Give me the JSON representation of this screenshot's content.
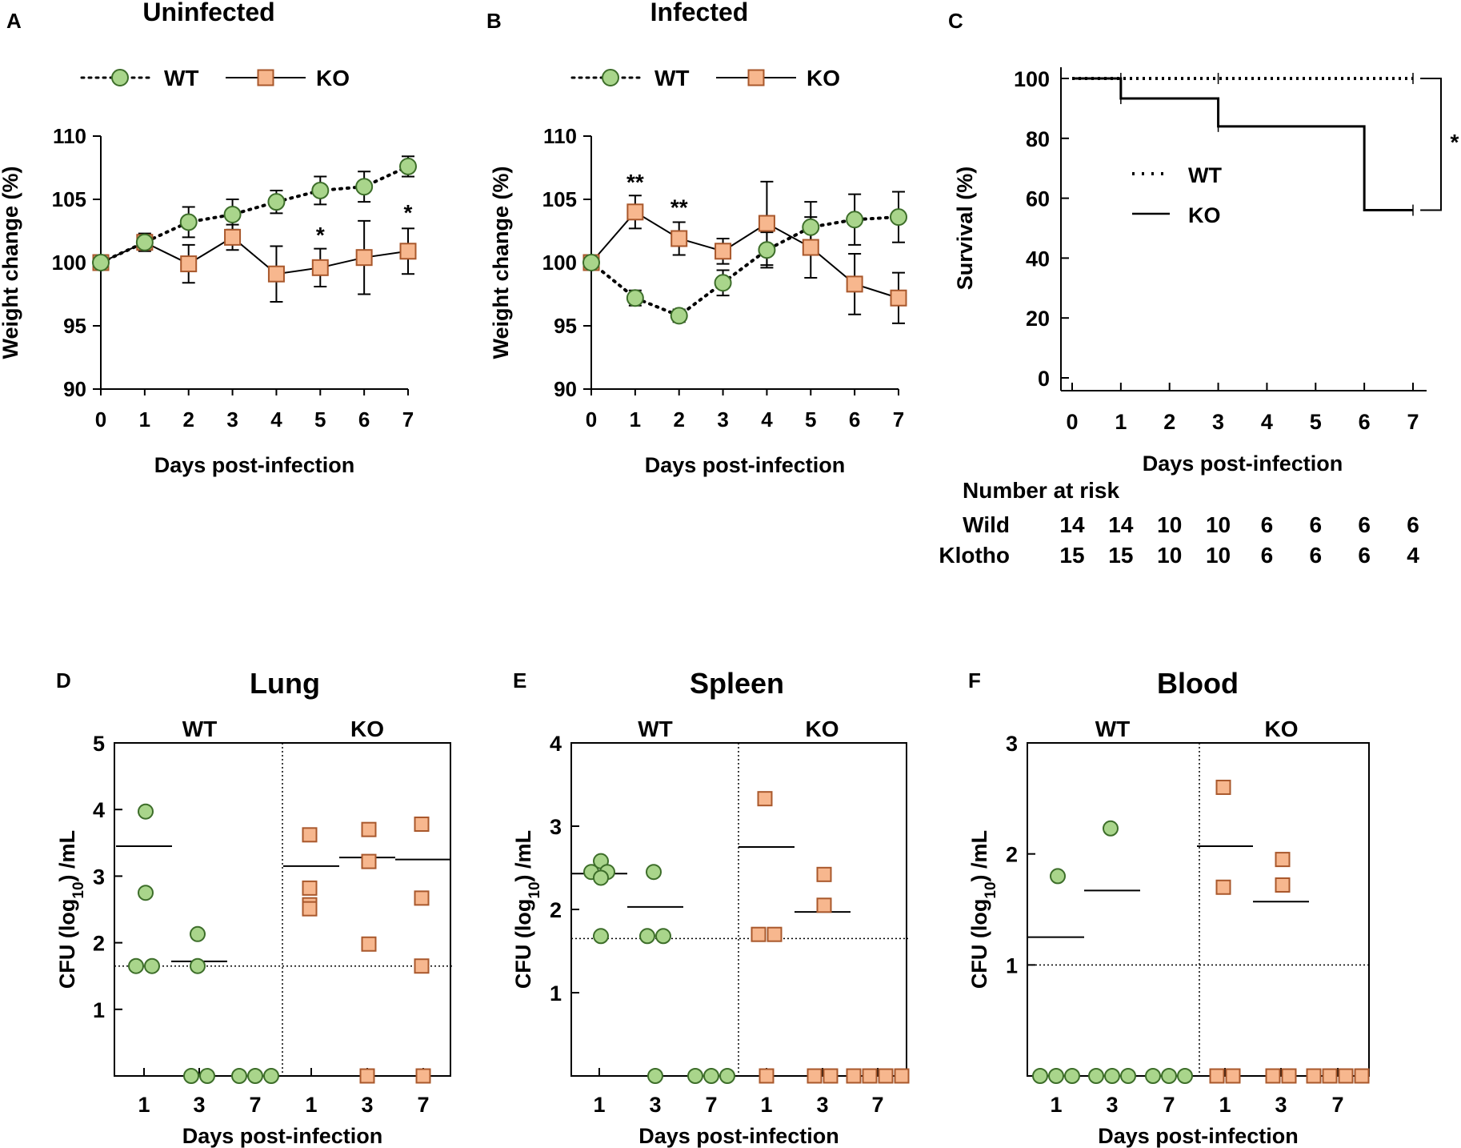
{
  "colors": {
    "wt_fill": "#a9d58b",
    "wt_stroke": "#3d6e2a",
    "ko_fill": "#f7b78e",
    "ko_stroke": "#a9582c",
    "ink": "#000000"
  },
  "chart_data": [
    {
      "id": "A",
      "type": "line",
      "panel_label": "A",
      "title": "Uninfected",
      "xlabel": "Days post-infection",
      "ylabel": "Weight change (%)",
      "xlim": [
        0,
        7
      ],
      "ylim": [
        90,
        110
      ],
      "x_ticks": [
        "0",
        "1",
        "2",
        "3",
        "4",
        "5",
        "6",
        "7"
      ],
      "y_ticks": [
        "90",
        "95",
        "100",
        "105",
        "110"
      ],
      "legend": [
        "WT",
        "KO"
      ],
      "x": [
        0,
        1,
        2,
        3,
        4,
        5,
        6,
        7
      ],
      "series": [
        {
          "name": "WT",
          "values": [
            100,
            101.6,
            103.2,
            103.8,
            104.8,
            105.7,
            106,
            107.6
          ],
          "err": [
            0,
            0.6,
            1.2,
            1.2,
            0.9,
            1.1,
            1.2,
            0.8
          ]
        },
        {
          "name": "KO",
          "values": [
            100,
            101.6,
            99.9,
            102,
            99.1,
            99.6,
            100.4,
            100.9
          ],
          "err": [
            0,
            0.7,
            1.5,
            1,
            2.2,
            1.5,
            2.9,
            1.8
          ]
        }
      ],
      "annotations": [
        {
          "x": 5,
          "y": 102.2,
          "text": "*"
        },
        {
          "x": 7,
          "y": 104,
          "text": "*"
        }
      ]
    },
    {
      "id": "B",
      "type": "line",
      "panel_label": "B",
      "title": "Infected",
      "xlabel": "Days post-infection",
      "ylabel": "Weight change (%)",
      "xlim": [
        0,
        7
      ],
      "ylim": [
        90,
        110
      ],
      "x_ticks": [
        "0",
        "1",
        "2",
        "3",
        "4",
        "5",
        "6",
        "7"
      ],
      "y_ticks": [
        "90",
        "95",
        "100",
        "105",
        "110"
      ],
      "legend": [
        "WT",
        "KO"
      ],
      "x": [
        0,
        1,
        2,
        3,
        4,
        5,
        6,
        7
      ],
      "series": [
        {
          "name": "WT",
          "values": [
            100,
            97.2,
            95.8,
            98.4,
            101,
            102.8,
            103.4,
            103.6
          ],
          "err": [
            0,
            0.6,
            0.5,
            1,
            1.4,
            2,
            2,
            2
          ]
        },
        {
          "name": "KO",
          "values": [
            100,
            104,
            101.9,
            100.9,
            103.1,
            101.2,
            98.3,
            97.2
          ],
          "err": [
            0,
            1.3,
            1.3,
            1,
            3.3,
            2.4,
            2.4,
            2
          ]
        }
      ],
      "annotations": [
        {
          "x": 1,
          "y": 106.4,
          "text": "**"
        },
        {
          "x": 2,
          "y": 104.4,
          "text": "**"
        }
      ]
    },
    {
      "id": "C",
      "type": "line",
      "panel_label": "C",
      "xlabel": "Days post-infection",
      "ylabel": "Survival (%)",
      "xlim": [
        0,
        7
      ],
      "ylim": [
        0,
        100
      ],
      "x_ticks": [
        "0",
        "1",
        "2",
        "3",
        "4",
        "5",
        "6",
        "7"
      ],
      "y_ticks": [
        "0",
        "20",
        "40",
        "60",
        "80",
        "100"
      ],
      "legend": [
        "WT",
        "KO"
      ],
      "series": [
        {
          "name": "WT",
          "steps": [
            [
              0,
              100
            ],
            [
              7,
              100
            ]
          ]
        },
        {
          "name": "KO",
          "steps": [
            [
              0,
              100
            ],
            [
              1,
              93.3
            ],
            [
              3,
              84
            ],
            [
              6,
              56
            ],
            [
              7,
              56
            ]
          ]
        }
      ],
      "annotations": [
        {
          "text": "*"
        }
      ],
      "risk_table": {
        "title": "Number at risk",
        "rows": [
          {
            "label": "Wild",
            "values": [
              "14",
              "14",
              "10",
              "10",
              "6",
              "6",
              "6",
              "6"
            ]
          },
          {
            "label": "Klotho",
            "values": [
              "15",
              "15",
              "10",
              "10",
              "6",
              "6",
              "6",
              "4"
            ]
          }
        ]
      }
    },
    {
      "id": "D",
      "type": "scatter",
      "panel_label": "D",
      "title": "Lung",
      "xlabel": "Days post-infection",
      "ylabel": "CFU (log10) /mL",
      "ylim": [
        0,
        5
      ],
      "y_ticks": [
        "1",
        "2",
        "3",
        "4",
        "5"
      ],
      "group_labels": [
        "WT",
        "KO"
      ],
      "x_ticks": [
        "1",
        "3",
        "7",
        "1",
        "3",
        "7"
      ],
      "detection_limit": 1.65,
      "groups": [
        {
          "genotype": "WT",
          "day": "1",
          "points": [
            3.97,
            2.75,
            1.65,
            1.65
          ],
          "median": 3.45
        },
        {
          "genotype": "WT",
          "day": "3",
          "points": [
            2.13,
            1.65,
            0,
            0
          ],
          "median": 1.72
        },
        {
          "genotype": "WT",
          "day": "7",
          "points": [
            0,
            0,
            0
          ],
          "median": null
        },
        {
          "genotype": "KO",
          "day": "1",
          "points": [
            3.62,
            2.82,
            2.57,
            2.51
          ],
          "median": 3.15
        },
        {
          "genotype": "KO",
          "day": "3",
          "points": [
            3.7,
            3.22,
            1.98,
            0
          ],
          "median": 3.28
        },
        {
          "genotype": "KO",
          "day": "7",
          "points": [
            3.78,
            2.67,
            1.65,
            0
          ],
          "median": 3.25
        }
      ]
    },
    {
      "id": "E",
      "type": "scatter",
      "panel_label": "E",
      "title": "Spleen",
      "xlabel": "Days post-infection",
      "ylabel": "CFU (log10) /mL",
      "ylim": [
        0,
        4
      ],
      "y_ticks": [
        "1",
        "2",
        "3",
        "4"
      ],
      "group_labels": [
        "WT",
        "KO"
      ],
      "x_ticks": [
        "1",
        "3",
        "7",
        "1",
        "3",
        "7"
      ],
      "detection_limit": 1.65,
      "groups": [
        {
          "genotype": "WT",
          "day": "1",
          "points": [
            2.58,
            2.45,
            2.45,
            2.38,
            1.68
          ],
          "median": 2.43
        },
        {
          "genotype": "WT",
          "day": "3",
          "points": [
            2.45,
            1.68,
            1.68,
            0
          ],
          "median": 2.03
        },
        {
          "genotype": "WT",
          "day": "7",
          "points": [
            0,
            0,
            0
          ],
          "median": null
        },
        {
          "genotype": "KO",
          "day": "1",
          "points": [
            3.33,
            1.7,
            1.7,
            0
          ],
          "median": 2.75
        },
        {
          "genotype": "KO",
          "day": "3",
          "points": [
            2.42,
            2.05,
            0,
            0
          ],
          "median": 1.97
        },
        {
          "genotype": "KO",
          "day": "7",
          "points": [
            0,
            0,
            0,
            0
          ],
          "median": null
        }
      ]
    },
    {
      "id": "F",
      "type": "scatter",
      "panel_label": "F",
      "title": "Blood",
      "xlabel": "Days post-infection",
      "ylabel": "CFU (log10) /mL",
      "ylim": [
        0,
        3
      ],
      "y_ticks": [
        "1",
        "2",
        "3"
      ],
      "group_labels": [
        "WT",
        "KO"
      ],
      "x_ticks": [
        "1",
        "3",
        "7",
        "1",
        "3",
        "7"
      ],
      "detection_limit": 1.0,
      "groups": [
        {
          "genotype": "WT",
          "day": "1",
          "points": [
            1.8,
            0,
            0,
            0
          ],
          "median": 1.25
        },
        {
          "genotype": "WT",
          "day": "3",
          "points": [
            2.23,
            0,
            0,
            0
          ],
          "median": 1.67
        },
        {
          "genotype": "WT",
          "day": "7",
          "points": [
            0,
            0,
            0
          ],
          "median": null
        },
        {
          "genotype": "KO",
          "day": "1",
          "points": [
            2.6,
            1.7,
            0,
            0
          ],
          "median": 2.07
        },
        {
          "genotype": "KO",
          "day": "3",
          "points": [
            1.95,
            1.72,
            0,
            0
          ],
          "median": 1.57
        },
        {
          "genotype": "KO",
          "day": "7",
          "points": [
            0,
            0,
            0,
            0
          ],
          "median": null
        }
      ]
    }
  ]
}
